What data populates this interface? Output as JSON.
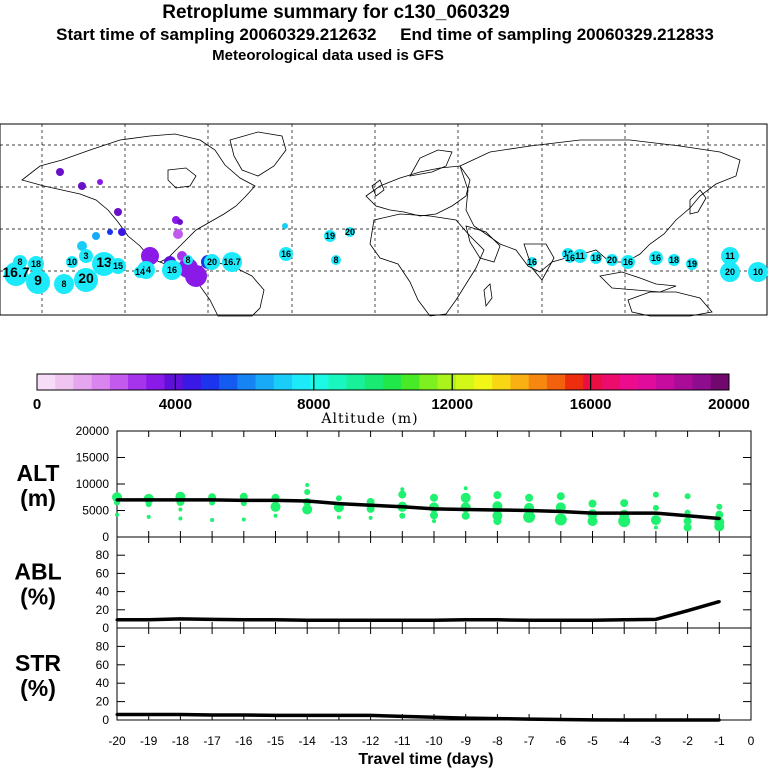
{
  "title": "Retroplume summary for c130_060329",
  "subtitle": "Start time of sampling 20060329.212632     End time of sampling 20060329.212833",
  "meteo": "Meteorological data used is GFS",
  "colorbar": {
    "colors": [
      "#f7dcf7",
      "#efc4ef",
      "#e6a6ef",
      "#da84ef",
      "#c25aee",
      "#a534ec",
      "#8a1ae8",
      "#6010d8",
      "#3a18e6",
      "#1c34ee",
      "#145cf0",
      "#1684f2",
      "#18aaf6",
      "#1accf8",
      "#1ceafa",
      "#1cfae6",
      "#1af6c0",
      "#18f09a",
      "#18ea72",
      "#20e84a",
      "#48ea28",
      "#7ef020",
      "#aaf41c",
      "#d2f818",
      "#f2f616",
      "#f8d614",
      "#f8b012",
      "#f68810",
      "#f2620e",
      "#ee2c0e",
      "#ea0e42",
      "#ec0c6c",
      "#ee0c8e",
      "#e00c9c",
      "#c60c9e",
      "#aa0c98",
      "#8e0c8e",
      "#70086e"
    ],
    "tick_labels": [
      "0",
      "4000",
      "8000",
      "12000",
      "16000",
      "20000"
    ],
    "label": "Altitude (m)"
  },
  "map_labels": [
    "16.7",
    "8",
    "9",
    "8",
    "20",
    "13",
    "3",
    "15",
    "14",
    "16",
    "8",
    "20",
    "16.7",
    "18",
    "10",
    "16",
    "19",
    "20",
    "8",
    "16",
    "16",
    "11",
    "18",
    "20",
    "16",
    "16",
    "18",
    "19",
    "11",
    "20",
    "10",
    "16",
    "14"
  ],
  "chart_data": [
    {
      "type": "line",
      "panel": "ALT",
      "ylabel_line1": "ALT",
      "ylabel_line2": "(m)",
      "x": [
        -20,
        -19,
        -18,
        -17,
        -16,
        -15,
        -14,
        -13,
        -12,
        -11,
        -10,
        -9,
        -8,
        -7,
        -6,
        -5,
        -4,
        -3,
        -2,
        -1
      ],
      "values": [
        7000,
        7000,
        7000,
        7000,
        6900,
        6900,
        6800,
        6300,
        6000,
        5700,
        5300,
        5200,
        5100,
        5000,
        4800,
        4500,
        4500,
        4500,
        4000,
        3500
      ],
      "ylim": [
        0,
        20000
      ],
      "yticks": [
        0,
        5000,
        10000,
        15000,
        20000
      ],
      "scatter_color": "#1ef26e",
      "scatter": [
        {
          "x": -20,
          "y": 7500,
          "s": 5
        },
        {
          "x": -20,
          "y": 6500,
          "s": 3
        },
        {
          "x": -20,
          "y": 4200,
          "s": 2
        },
        {
          "x": -19,
          "y": 7200,
          "s": 5
        },
        {
          "x": -19,
          "y": 6200,
          "s": 3
        },
        {
          "x": -19,
          "y": 3800,
          "s": 2
        },
        {
          "x": -18,
          "y": 7600,
          "s": 5
        },
        {
          "x": -18,
          "y": 6600,
          "s": 4
        },
        {
          "x": -18,
          "y": 5200,
          "s": 2
        },
        {
          "x": -18,
          "y": 3500,
          "s": 2
        },
        {
          "x": -17,
          "y": 7500,
          "s": 4
        },
        {
          "x": -17,
          "y": 6500,
          "s": 3
        },
        {
          "x": -17,
          "y": 3200,
          "s": 2
        },
        {
          "x": -16,
          "y": 7600,
          "s": 4
        },
        {
          "x": -16,
          "y": 6400,
          "s": 3
        },
        {
          "x": -16,
          "y": 3300,
          "s": 2
        },
        {
          "x": -15,
          "y": 7400,
          "s": 4
        },
        {
          "x": -15,
          "y": 5700,
          "s": 5
        },
        {
          "x": -15,
          "y": 4000,
          "s": 2
        },
        {
          "x": -14,
          "y": 8500,
          "s": 3
        },
        {
          "x": -14,
          "y": 6600,
          "s": 4
        },
        {
          "x": -14,
          "y": 5200,
          "s": 5
        },
        {
          "x": -14,
          "y": 9800,
          "s": 2
        },
        {
          "x": -13,
          "y": 7300,
          "s": 3
        },
        {
          "x": -13,
          "y": 5600,
          "s": 5
        },
        {
          "x": -13,
          "y": 3700,
          "s": 2
        },
        {
          "x": -12,
          "y": 6600,
          "s": 4
        },
        {
          "x": -12,
          "y": 5300,
          "s": 4
        },
        {
          "x": -12,
          "y": 3600,
          "s": 2
        },
        {
          "x": -11,
          "y": 8000,
          "s": 4
        },
        {
          "x": -11,
          "y": 5700,
          "s": 5
        },
        {
          "x": -11,
          "y": 4000,
          "s": 3
        },
        {
          "x": -11,
          "y": 9000,
          "s": 2
        },
        {
          "x": -10,
          "y": 7400,
          "s": 4
        },
        {
          "x": -10,
          "y": 5600,
          "s": 5
        },
        {
          "x": -10,
          "y": 4100,
          "s": 4
        },
        {
          "x": -10,
          "y": 3000,
          "s": 2
        },
        {
          "x": -9,
          "y": 7400,
          "s": 5
        },
        {
          "x": -9,
          "y": 5600,
          "s": 5
        },
        {
          "x": -9,
          "y": 4000,
          "s": 4
        },
        {
          "x": -9,
          "y": 9200,
          "s": 2
        },
        {
          "x": -8,
          "y": 7900,
          "s": 4
        },
        {
          "x": -8,
          "y": 5800,
          "s": 5
        },
        {
          "x": -8,
          "y": 4000,
          "s": 5
        },
        {
          "x": -8,
          "y": 3000,
          "s": 4
        },
        {
          "x": -7,
          "y": 7400,
          "s": 4
        },
        {
          "x": -7,
          "y": 5500,
          "s": 5
        },
        {
          "x": -7,
          "y": 3800,
          "s": 6
        },
        {
          "x": -6,
          "y": 7700,
          "s": 4
        },
        {
          "x": -6,
          "y": 5600,
          "s": 5
        },
        {
          "x": -6,
          "y": 3300,
          "s": 6
        },
        {
          "x": -5,
          "y": 6300,
          "s": 4
        },
        {
          "x": -5,
          "y": 4300,
          "s": 5
        },
        {
          "x": -5,
          "y": 3000,
          "s": 5
        },
        {
          "x": -4,
          "y": 6400,
          "s": 4
        },
        {
          "x": -4,
          "y": 4200,
          "s": 5
        },
        {
          "x": -4,
          "y": 3000,
          "s": 6
        },
        {
          "x": -3,
          "y": 8000,
          "s": 3
        },
        {
          "x": -3,
          "y": 5500,
          "s": 3
        },
        {
          "x": -3,
          "y": 3200,
          "s": 5
        },
        {
          "x": -3,
          "y": 1800,
          "s": 2
        },
        {
          "x": -2,
          "y": 7700,
          "s": 3
        },
        {
          "x": -2,
          "y": 4600,
          "s": 3
        },
        {
          "x": -2,
          "y": 3000,
          "s": 4
        },
        {
          "x": -2,
          "y": 1800,
          "s": 4
        },
        {
          "x": -1,
          "y": 5700,
          "s": 3
        },
        {
          "x": -1,
          "y": 4200,
          "s": 4
        },
        {
          "x": -1,
          "y": 2800,
          "s": 5
        },
        {
          "x": -1,
          "y": 2000,
          "s": 5
        }
      ]
    },
    {
      "type": "line",
      "panel": "ABL",
      "ylabel_line1": "ABL",
      "ylabel_line2": "(%)",
      "x": [
        -20,
        -19,
        -18,
        -17,
        -16,
        -15,
        -14,
        -13,
        -12,
        -11,
        -10,
        -9,
        -8,
        -7,
        -6,
        -5,
        -4,
        -3,
        -2,
        -1
      ],
      "values": [
        9,
        9,
        10,
        9.5,
        9,
        9,
        8.5,
        8.5,
        8.5,
        8.5,
        8.5,
        9,
        9,
        8.5,
        8.5,
        8.5,
        9,
        9.5,
        19,
        29
      ],
      "ylim": [
        0,
        100
      ],
      "yticks": [
        0,
        20,
        40,
        60,
        80
      ]
    },
    {
      "type": "line",
      "panel": "STR",
      "ylabel_line1": "STR",
      "ylabel_line2": "(%)",
      "x": [
        -20,
        -19,
        -18,
        -17,
        -16,
        -15,
        -14,
        -13,
        -12,
        -11,
        -10,
        -9,
        -8,
        -7,
        -6,
        -5,
        -4,
        -3,
        -2,
        -1
      ],
      "values": [
        6,
        6,
        6,
        5.5,
        5.5,
        5,
        5,
        5,
        5,
        4,
        3,
        2,
        1.5,
        1,
        0.5,
        0.2,
        0,
        0,
        0,
        0
      ],
      "ylim": [
        0,
        100
      ],
      "yticks": [
        0,
        20,
        40,
        60,
        80
      ],
      "xticks": [
        -20,
        -19,
        -18,
        -17,
        -16,
        -15,
        -14,
        -13,
        -12,
        -11,
        -10,
        -9,
        -8,
        -7,
        -6,
        -5,
        -4,
        -3,
        -2,
        -1,
        0
      ],
      "xlabel": "Travel time (days)"
    }
  ]
}
